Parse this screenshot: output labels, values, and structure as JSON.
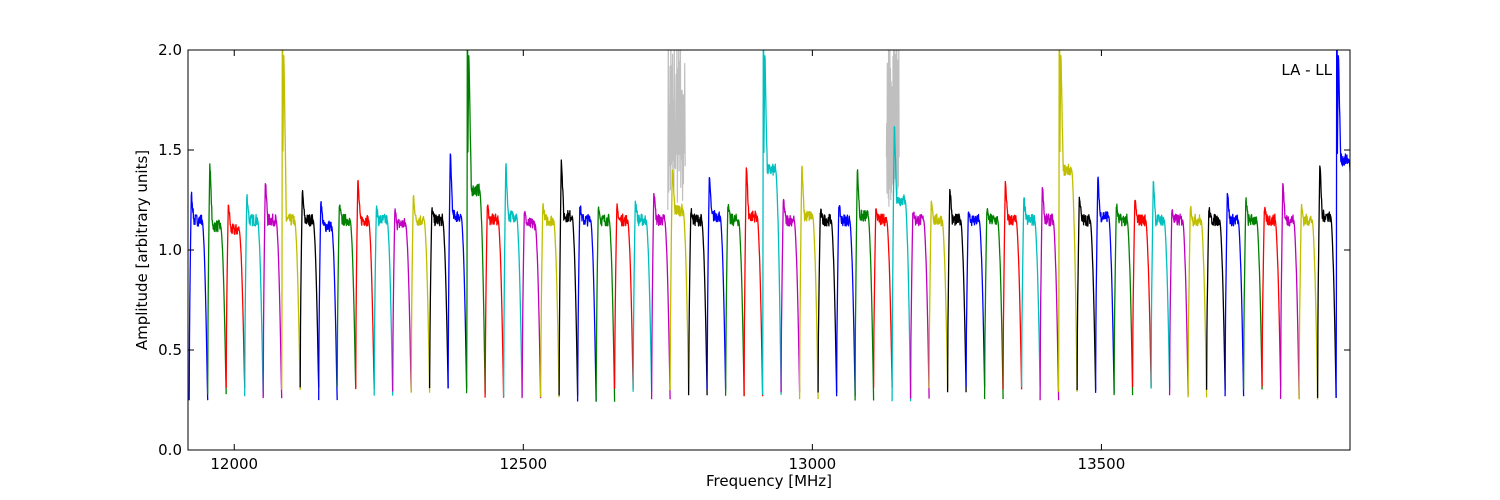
{
  "chart_data": {
    "type": "line",
    "xlabel": "Frequency [MHz]",
    "ylabel": "Amplitude [arbitrary units]",
    "annotation": "LA - LL",
    "xlim": [
      11920,
      13930
    ],
    "ylim": [
      0.0,
      2.0
    ],
    "x_ticks": [
      12000,
      12500,
      13000,
      13500
    ],
    "x_tick_labels": [
      "12000",
      "12500",
      "13000",
      "13500"
    ],
    "y_ticks": [
      0.0,
      0.5,
      1.0,
      1.5,
      2.0
    ],
    "y_tick_labels": [
      "0.0",
      "0.5",
      "1.0",
      "1.5",
      "2.0"
    ],
    "grid": false,
    "color_cycle": [
      "#0000ff",
      "#008000",
      "#ff0000",
      "#00bfbf",
      "#bf00bf",
      "#bfbf00",
      "#000000"
    ],
    "channel_width_mhz": 32,
    "channels": [
      {
        "start": 11922,
        "peak": 1.29,
        "mid": 1.15,
        "color": "#0000ff"
      },
      {
        "start": 11954,
        "peak": 1.45,
        "mid": 1.12,
        "color": "#008000"
      },
      {
        "start": 11986,
        "peak": 1.24,
        "mid": 1.1,
        "color": "#ff0000"
      },
      {
        "start": 12018,
        "peak": 1.28,
        "mid": 1.15,
        "color": "#00bfbf"
      },
      {
        "start": 12050,
        "peak": 1.35,
        "mid": 1.15,
        "color": "#bf00bf"
      },
      {
        "start": 12082,
        "peak": 2.0,
        "mid": 1.15,
        "color": "#bfbf00",
        "spike": true
      },
      {
        "start": 12114,
        "peak": 1.3,
        "mid": 1.15,
        "color": "#000000"
      },
      {
        "start": 12146,
        "peak": 1.25,
        "mid": 1.12,
        "color": "#0000ff"
      },
      {
        "start": 12178,
        "peak": 1.23,
        "mid": 1.15,
        "color": "#008000"
      },
      {
        "start": 12210,
        "peak": 1.36,
        "mid": 1.15,
        "color": "#ff0000"
      },
      {
        "start": 12242,
        "peak": 1.21,
        "mid": 1.15,
        "color": "#00bfbf"
      },
      {
        "start": 12274,
        "peak": 1.2,
        "mid": 1.13,
        "color": "#bf00bf"
      },
      {
        "start": 12306,
        "peak": 1.28,
        "mid": 1.15,
        "color": "#bfbf00"
      },
      {
        "start": 12338,
        "peak": 1.21,
        "mid": 1.15,
        "color": "#000000"
      },
      {
        "start": 12370,
        "peak": 1.5,
        "mid": 1.17,
        "color": "#0000ff"
      },
      {
        "start": 12402,
        "peak": 2.0,
        "mid": 1.3,
        "color": "#008000",
        "spike": true
      },
      {
        "start": 12434,
        "peak": 1.23,
        "mid": 1.15,
        "color": "#ff0000"
      },
      {
        "start": 12466,
        "peak": 1.44,
        "mid": 1.17,
        "color": "#00bfbf"
      },
      {
        "start": 12498,
        "peak": 1.2,
        "mid": 1.13,
        "color": "#bf00bf"
      },
      {
        "start": 12530,
        "peak": 1.23,
        "mid": 1.15,
        "color": "#bfbf00"
      },
      {
        "start": 12562,
        "peak": 1.47,
        "mid": 1.17,
        "color": "#000000"
      },
      {
        "start": 12594,
        "peak": 1.23,
        "mid": 1.15,
        "color": "#0000ff"
      },
      {
        "start": 12626,
        "peak": 1.22,
        "mid": 1.15,
        "color": "#008000"
      },
      {
        "start": 12658,
        "peak": 1.22,
        "mid": 1.15,
        "color": "#ff0000"
      },
      {
        "start": 12690,
        "peak": 1.26,
        "mid": 1.15,
        "color": "#00bfbf"
      },
      {
        "start": 12722,
        "peak": 1.3,
        "mid": 1.15,
        "color": "#bf00bf"
      },
      {
        "start": 12754,
        "peak": 1.42,
        "mid": 1.2,
        "color": "#bfbf00"
      },
      {
        "start": 12786,
        "peak": 1.2,
        "mid": 1.15,
        "color": "#000000"
      },
      {
        "start": 12818,
        "peak": 1.38,
        "mid": 1.17,
        "color": "#0000ff"
      },
      {
        "start": 12850,
        "peak": 1.23,
        "mid": 1.15,
        "color": "#008000"
      },
      {
        "start": 12882,
        "peak": 1.43,
        "mid": 1.17,
        "color": "#ff0000"
      },
      {
        "start": 12914,
        "peak": 2.0,
        "mid": 1.4,
        "color": "#00bfbf",
        "spike": true
      },
      {
        "start": 12946,
        "peak": 1.26,
        "mid": 1.15,
        "color": "#bf00bf"
      },
      {
        "start": 12978,
        "peak": 1.43,
        "mid": 1.17,
        "color": "#bfbf00"
      },
      {
        "start": 13010,
        "peak": 1.2,
        "mid": 1.15,
        "color": "#000000"
      },
      {
        "start": 13042,
        "peak": 1.23,
        "mid": 1.15,
        "color": "#0000ff"
      },
      {
        "start": 13074,
        "peak": 1.41,
        "mid": 1.17,
        "color": "#008000"
      },
      {
        "start": 13106,
        "peak": 1.22,
        "mid": 1.15,
        "color": "#ff0000"
      },
      {
        "start": 13138,
        "peak": 1.64,
        "mid": 1.25,
        "color": "#00bfbf"
      },
      {
        "start": 13170,
        "peak": 1.2,
        "mid": 1.15,
        "color": "#bf00bf"
      },
      {
        "start": 13202,
        "peak": 1.26,
        "mid": 1.15,
        "color": "#bfbf00"
      },
      {
        "start": 13234,
        "peak": 1.32,
        "mid": 1.15,
        "color": "#000000"
      },
      {
        "start": 13266,
        "peak": 1.2,
        "mid": 1.15,
        "color": "#0000ff"
      },
      {
        "start": 13298,
        "peak": 1.2,
        "mid": 1.15,
        "color": "#008000"
      },
      {
        "start": 13330,
        "peak": 1.36,
        "mid": 1.15,
        "color": "#ff0000"
      },
      {
        "start": 13362,
        "peak": 1.27,
        "mid": 1.15,
        "color": "#00bfbf"
      },
      {
        "start": 13394,
        "peak": 1.33,
        "mid": 1.15,
        "color": "#bf00bf"
      },
      {
        "start": 13426,
        "peak": 2.0,
        "mid": 1.4,
        "color": "#bfbf00",
        "spike": true
      },
      {
        "start": 13458,
        "peak": 1.28,
        "mid": 1.15,
        "color": "#000000"
      },
      {
        "start": 13490,
        "peak": 1.37,
        "mid": 1.17,
        "color": "#0000ff"
      },
      {
        "start": 13522,
        "peak": 1.23,
        "mid": 1.15,
        "color": "#008000"
      },
      {
        "start": 13554,
        "peak": 1.26,
        "mid": 1.15,
        "color": "#ff0000"
      },
      {
        "start": 13586,
        "peak": 1.36,
        "mid": 1.15,
        "color": "#00bfbf"
      },
      {
        "start": 13618,
        "peak": 1.2,
        "mid": 1.15,
        "color": "#bf00bf"
      },
      {
        "start": 13650,
        "peak": 1.22,
        "mid": 1.15,
        "color": "#bfbf00"
      },
      {
        "start": 13682,
        "peak": 1.21,
        "mid": 1.15,
        "color": "#000000"
      },
      {
        "start": 13714,
        "peak": 1.3,
        "mid": 1.15,
        "color": "#0000ff"
      },
      {
        "start": 13746,
        "peak": 1.26,
        "mid": 1.15,
        "color": "#008000"
      },
      {
        "start": 13778,
        "peak": 1.21,
        "mid": 1.15,
        "color": "#ff0000"
      },
      {
        "start": 13810,
        "peak": 1.35,
        "mid": 1.15,
        "color": "#bf00bf"
      },
      {
        "start": 13842,
        "peak": 1.22,
        "mid": 1.15,
        "color": "#bfbf00"
      },
      {
        "start": 13874,
        "peak": 1.44,
        "mid": 1.17,
        "color": "#000000"
      },
      {
        "start": 13906,
        "peak": 2.0,
        "mid": 1.45,
        "color": "#0000ff",
        "spike": true
      }
    ],
    "gray_regions": [
      {
        "start": 12750,
        "end": 12780,
        "peak": 2.0,
        "color": "#bfbfbf"
      },
      {
        "start": 13128,
        "end": 13150,
        "peak": 2.0,
        "color": "#bfbfbf"
      }
    ]
  }
}
